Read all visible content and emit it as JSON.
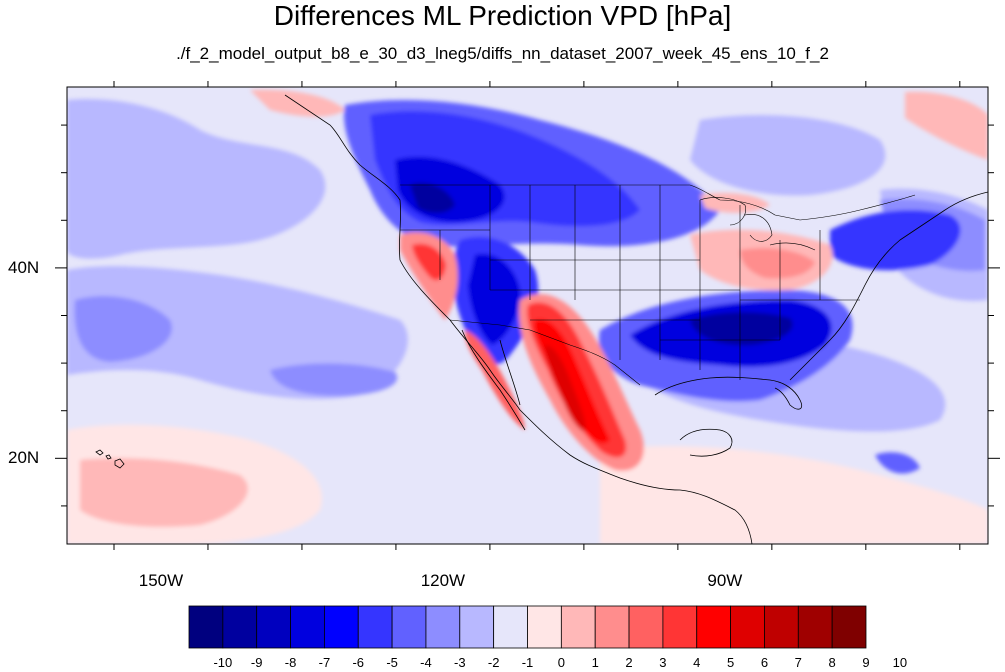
{
  "title": "Differences ML Prediction VPD [hPa]",
  "subtitle": "./f_2_model_output_b8_e_30_d3_lneg5/diffs_nn_dataset_2007_week_45_ens_10_f_2",
  "map": {
    "lon_range": [
      -160,
      -62
    ],
    "lat_range": [
      11,
      59
    ],
    "lat_ticks": [
      {
        "value": 40,
        "label": "40N"
      },
      {
        "value": 20,
        "label": "20N"
      }
    ],
    "lon_ticks": [
      {
        "value": -150,
        "label": "150W"
      },
      {
        "value": -120,
        "label": "120W"
      },
      {
        "value": -90,
        "label": "90W"
      }
    ],
    "background_color": "#e6e6fa"
  },
  "colorbar": {
    "labels": [
      "-10",
      "-9",
      "-8",
      "-7",
      "-6",
      "-5",
      "-4",
      "-3",
      "-2",
      "-1",
      "0",
      "1",
      "2",
      "3",
      "4",
      "5",
      "6",
      "7",
      "8",
      "9",
      "10"
    ],
    "colors": [
      "#00007f",
      "#00009f",
      "#0000bf",
      "#0000df",
      "#0000ff",
      "#3535ff",
      "#6161ff",
      "#8d8dff",
      "#b8b8ff",
      "#e6e6fa",
      "#ffe6e6",
      "#ffb8b8",
      "#ff8d8d",
      "#ff6161",
      "#ff3535",
      "#ff0000",
      "#df0000",
      "#bf0000",
      "#9f0000",
      "#7f0000"
    ]
  }
}
